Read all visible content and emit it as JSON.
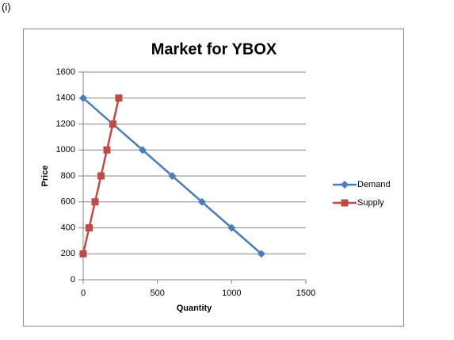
{
  "label": "(i)",
  "chart_data": {
    "type": "line",
    "title": "Market for YBOX",
    "xlabel": "Quantity",
    "ylabel": "Price",
    "series": [
      {
        "name": "Demand",
        "color": "#4a7ebb",
        "marker": "diamond",
        "x": [
          0,
          400,
          600,
          800,
          1000,
          1200
        ],
        "values": [
          1400,
          1000,
          800,
          600,
          400,
          200
        ]
      },
      {
        "name": "Supply",
        "color": "#be4b48",
        "marker": "square",
        "x": [
          0,
          40,
          80,
          120,
          160,
          200,
          240
        ],
        "values": [
          200,
          400,
          600,
          800,
          1000,
          1200,
          1400
        ]
      }
    ],
    "xlim": [
      0,
      1500
    ],
    "xticks": [
      0,
      500,
      1000,
      1500
    ],
    "ylim": [
      0,
      1600
    ],
    "yticks": [
      0,
      200,
      400,
      600,
      800,
      1000,
      1200,
      1400,
      1600
    ],
    "grid": true,
    "legend": "right"
  }
}
